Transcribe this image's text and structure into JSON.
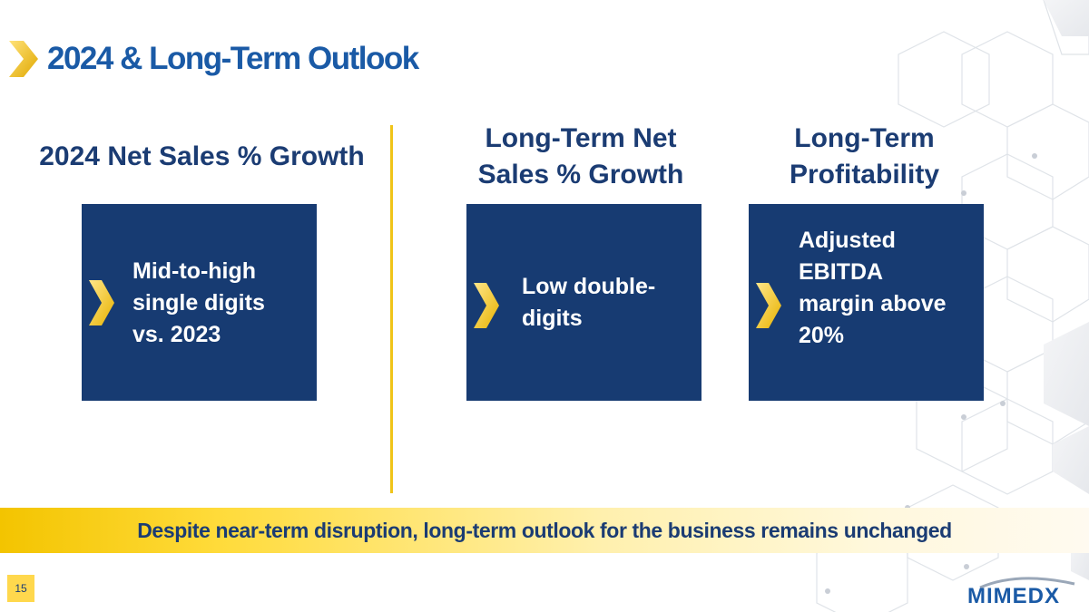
{
  "slide": {
    "title": "2024 & Long-Term Outlook",
    "page_number": "15",
    "banner": "Despite near-term disruption, long-term outlook for the business remains unchanged"
  },
  "columns": [
    {
      "heading": "2024 Net Sales % Growth",
      "lines": [
        "Mid-to-high",
        "single digits",
        "vs. 2023"
      ]
    },
    {
      "heading_lines": [
        "Long-Term Net",
        "Sales % Growth"
      ],
      "lines": [
        "Low double-",
        "digits"
      ]
    },
    {
      "heading_lines": [
        "Long-Term",
        "Profitability"
      ],
      "lines": [
        "Adjusted",
        "EBITDA",
        "margin above",
        "20%"
      ]
    }
  ],
  "logo": {
    "text": "MIMEDX"
  },
  "colors": {
    "navy": "#173b72",
    "title_blue": "#1a5aa6",
    "gold": "#f0c419",
    "box_chevron": "#ffd84d"
  },
  "icons": [
    "chevron-right-icon",
    "hexagon-pattern",
    "mimedx-logo"
  ]
}
